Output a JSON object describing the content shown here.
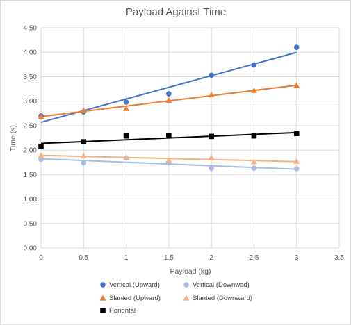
{
  "chart_data": {
    "type": "scatter",
    "title": "Payload Against Time",
    "xlabel": "Payload (kg)",
    "ylabel": "Time (s)",
    "xlim": [
      0,
      3.5
    ],
    "ylim": [
      0,
      4.5
    ],
    "x_ticks": [
      "0",
      "0.5",
      "1",
      "1.5",
      "2",
      "2.5",
      "3",
      "3.5"
    ],
    "y_ticks": [
      "0.00",
      "0.50",
      "1.00",
      "1.50",
      "2.00",
      "2.50",
      "3.00",
      "3.50",
      "4.00",
      "4.50"
    ],
    "grid": true,
    "legend_position": "bottom",
    "trendlines": "linear",
    "series": [
      {
        "name": "Vertical (Upward)",
        "marker": "circle",
        "color": "#4472C4",
        "x": [
          0,
          0.5,
          1,
          1.5,
          2,
          2.5,
          3
        ],
        "y": [
          2.7,
          2.78,
          2.98,
          3.15,
          3.53,
          3.74,
          4.1
        ]
      },
      {
        "name": "Vertical (Downwad)",
        "marker": "circle",
        "color": "#A9BCE2",
        "x": [
          0,
          0.5,
          1,
          1.5,
          2,
          2.5,
          3
        ],
        "y": [
          1.81,
          1.74,
          1.84,
          1.74,
          1.63,
          1.63,
          1.62
        ]
      },
      {
        "name": "Slanted (Upward)",
        "marker": "triangle",
        "color": "#ED7D31",
        "x": [
          0,
          0.5,
          1,
          1.5,
          2,
          2.5,
          3
        ],
        "y": [
          2.69,
          2.81,
          2.85,
          3.02,
          3.13,
          3.22,
          3.32
        ]
      },
      {
        "name": "Slanted (Downward)",
        "marker": "triangle",
        "color": "#F4B183",
        "x": [
          0,
          0.5,
          1,
          1.5,
          2,
          2.5,
          3
        ],
        "y": [
          1.89,
          1.88,
          1.85,
          1.8,
          1.85,
          1.76,
          1.77
        ]
      },
      {
        "name": "Horiontal",
        "marker": "square",
        "color": "#000000",
        "x": [
          0,
          0.5,
          1,
          1.5,
          2,
          2.5,
          3
        ],
        "y": [
          2.07,
          2.17,
          2.29,
          2.29,
          2.28,
          2.29,
          2.34
        ]
      }
    ]
  }
}
